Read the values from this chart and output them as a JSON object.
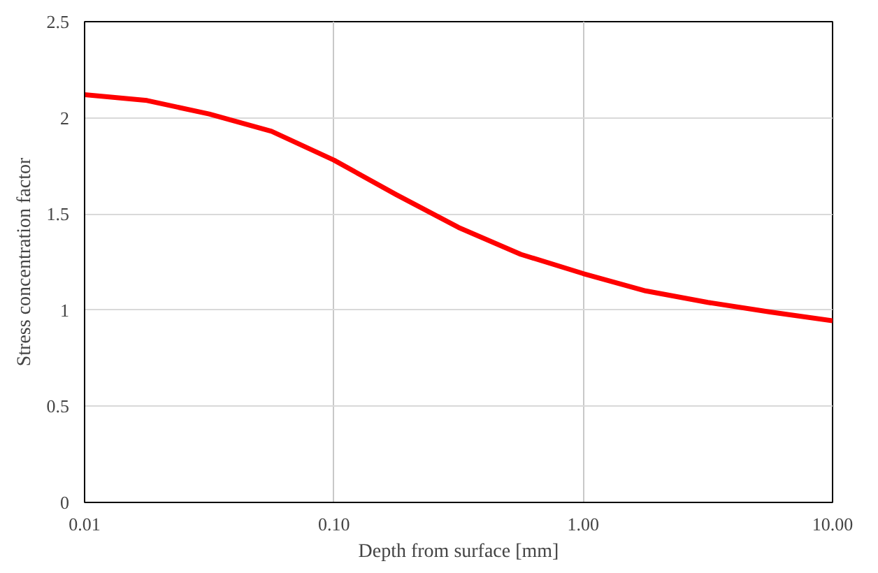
{
  "chart_data": {
    "type": "line",
    "xlabel": "Depth from surface [mm]",
    "ylabel": "Stress concentration factor",
    "log": "x",
    "x": [
      0.01,
      0.0178,
      0.0316,
      0.0562,
      0.1,
      0.178,
      0.316,
      0.562,
      1.0,
      1.78,
      3.16,
      5.62,
      10.0
    ],
    "series": [
      {
        "color": "#ff0000",
        "values": [
          2.12,
          2.09,
          2.02,
          1.93,
          1.78,
          1.6,
          1.43,
          1.29,
          1.19,
          1.1,
          1.04,
          0.99,
          0.945
        ]
      }
    ],
    "xlim": [
      0.01,
      10
    ],
    "xticks": [
      {
        "value": 0.01,
        "label": "0.01"
      },
      {
        "value": 0.1,
        "label": "0.10"
      },
      {
        "value": 1,
        "label": "1.00"
      },
      {
        "value": 10,
        "label": "10.00"
      }
    ],
    "ylim": [
      0,
      2.5
    ],
    "yticks": [
      {
        "value": 0,
        "label": "0"
      },
      {
        "value": 0.5,
        "label": "0.5"
      },
      {
        "value": 1,
        "label": "1"
      },
      {
        "value": 1.5,
        "label": "1.5"
      },
      {
        "value": 2,
        "label": "2"
      },
      {
        "value": 2.5,
        "label": "2.5"
      }
    ],
    "grid": true,
    "marker": "none",
    "line_style": "solid"
  }
}
